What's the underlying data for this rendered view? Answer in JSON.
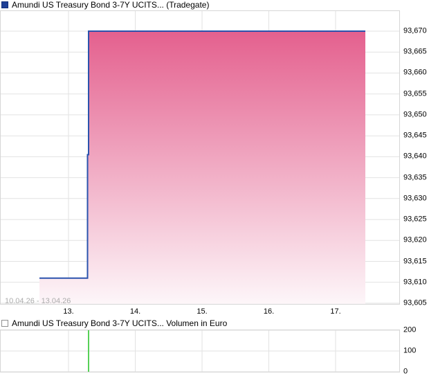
{
  "chart_data": [
    {
      "type": "area",
      "title": "Amundi US Treasury Bond 3-7Y UCITS... (Tradegate)",
      "range_label": "10.04.26 - 13.04.26",
      "legend_color": "#1e3f96",
      "grid": true,
      "legend_position": "top-left",
      "ylim": [
        93.605,
        93.67
      ],
      "y_ticks": [
        {
          "label": "93,670",
          "v": 93.67
        },
        {
          "label": "93,665",
          "v": 93.665
        },
        {
          "label": "93,660",
          "v": 93.66
        },
        {
          "label": "93,655",
          "v": 93.655
        },
        {
          "label": "93,650",
          "v": 93.65
        },
        {
          "label": "93,645",
          "v": 93.645
        },
        {
          "label": "93,640",
          "v": 93.64
        },
        {
          "label": "93,635",
          "v": 93.635
        },
        {
          "label": "93,630",
          "v": 93.63
        },
        {
          "label": "93,625",
          "v": 93.625
        },
        {
          "label": "93,620",
          "v": 93.62
        },
        {
          "label": "93,615",
          "v": 93.615
        },
        {
          "label": "93,610",
          "v": 93.61
        },
        {
          "label": "93,605",
          "v": 93.605
        }
      ],
      "x_ticks": [
        {
          "label": "13.",
          "d": 13
        },
        {
          "label": "14.",
          "d": 14
        },
        {
          "label": "15.",
          "d": 15
        },
        {
          "label": "16.",
          "d": 16
        },
        {
          "label": "17.",
          "d": 17
        }
      ],
      "series": [
        {
          "name": "price",
          "line_color": "#2a53ad",
          "fill_top": "#e4608e",
          "fill_bottom": "#fdf6f9",
          "points": [
            [
              12.565,
              93.611
            ],
            [
              13.285,
              93.611
            ],
            [
              13.285,
              93.6405
            ],
            [
              13.301,
              93.6405
            ],
            [
              13.301,
              93.67
            ],
            [
              17.446,
              93.67
            ]
          ]
        }
      ]
    },
    {
      "type": "bar",
      "title": "Amundi US Treasury Bond 3-7Y UCITS... Volumen in Euro",
      "legend_color": "#ffffff",
      "ylim": [
        0,
        200
      ],
      "y_ticks": [
        {
          "label": "200",
          "v": 200
        },
        {
          "label": "100",
          "v": 100
        },
        {
          "label": "0",
          "v": 0
        }
      ],
      "bar_color": "#57d157",
      "bars": [
        {
          "d": 13.301,
          "value": 200
        }
      ]
    }
  ]
}
